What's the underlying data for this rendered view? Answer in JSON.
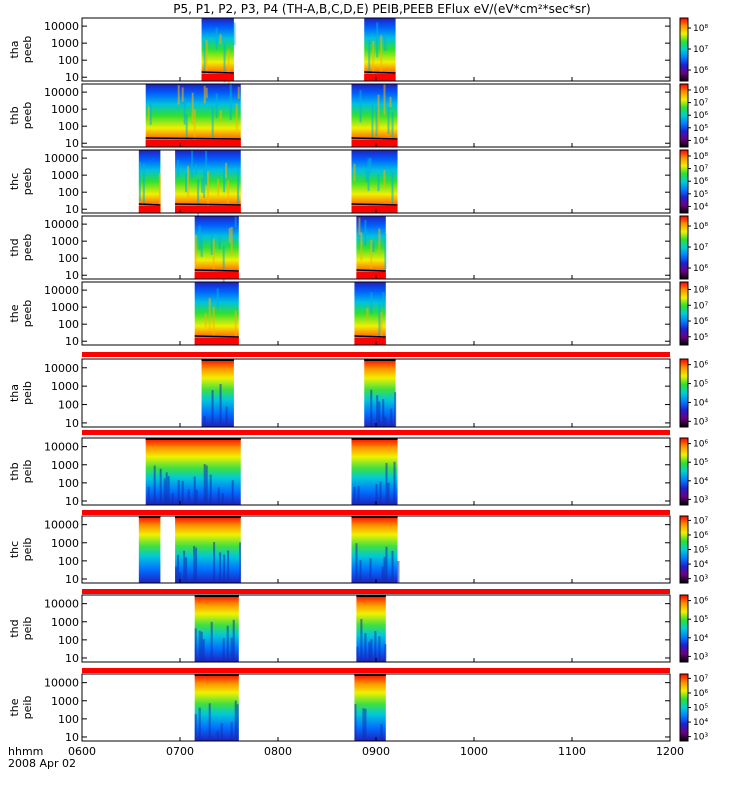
{
  "title": "P5, P1, P2, P3, P4 (TH-A,B,C,D,E) PEIB,PEEB EFlux eV/(eV*cm²*sec*sr)",
  "x_axis": {
    "label_line1": "hhmm",
    "label_line2": "2008 Apr 02",
    "tick_labels": [
      "0600",
      "0700",
      "0800",
      "0900",
      "1000",
      "1100",
      "1200"
    ]
  },
  "colors": {
    "colormap": [
      "#000000",
      "#6a0080",
      "#2020d0",
      "#0080ff",
      "#00d0d0",
      "#30e030",
      "#f0f000",
      "#ff9000",
      "#ff0000"
    ],
    "axes": "#000000",
    "separator": "#ff0000"
  },
  "chart_data": {
    "type": "heatmap",
    "x_range_hours": [
      6.0,
      12.0
    ],
    "y_scale": "log",
    "y_unit": "eV",
    "panels": [
      {
        "probe": "tha",
        "quantity": "peeb",
        "y_ticks": [
          "10",
          "100",
          "1000",
          "10000"
        ],
        "y_range": [
          6,
          30000
        ],
        "cbar_ticks": [
          "10⁶",
          "10⁷",
          "10⁸"
        ],
        "cbar_range": [
          300000,
          300000000
        ],
        "segments": [
          [
            7.22,
            7.55
          ],
          [
            8.88,
            9.2
          ]
        ]
      },
      {
        "probe": "thb",
        "quantity": "peeb",
        "y_ticks": [
          "10",
          "100",
          "1000",
          "10000"
        ],
        "y_range": [
          6,
          30000
        ],
        "cbar_ticks": [
          "10⁴",
          "10⁵",
          "10⁶",
          "10⁷",
          "10⁸"
        ],
        "cbar_range": [
          3000,
          300000000
        ],
        "segments": [
          [
            6.65,
            7.62
          ],
          [
            8.75,
            9.22
          ]
        ]
      },
      {
        "probe": "thc",
        "quantity": "peeb",
        "y_ticks": [
          "10",
          "100",
          "1000",
          "10000"
        ],
        "y_range": [
          6,
          30000
        ],
        "cbar_ticks": [
          "10⁴",
          "10⁵",
          "10⁶",
          "10⁷",
          "10⁸"
        ],
        "cbar_range": [
          3000,
          300000000
        ],
        "segments": [
          [
            6.58,
            6.8
          ],
          [
            6.95,
            7.62
          ],
          [
            8.75,
            9.22
          ]
        ]
      },
      {
        "probe": "thd",
        "quantity": "peeb",
        "y_ticks": [
          "10",
          "100",
          "1000",
          "10000"
        ],
        "y_range": [
          6,
          30000
        ],
        "cbar_ticks": [
          "10⁶",
          "10⁷",
          "10⁸"
        ],
        "cbar_range": [
          300000,
          300000000
        ],
        "segments": [
          [
            7.15,
            7.6
          ],
          [
            8.8,
            9.1
          ]
        ]
      },
      {
        "probe": "the",
        "quantity": "peeb",
        "y_ticks": [
          "10",
          "100",
          "1000",
          "10000"
        ],
        "y_range": [
          6,
          30000
        ],
        "cbar_ticks": [
          "10⁵",
          "10⁶",
          "10⁷",
          "10⁸"
        ],
        "cbar_range": [
          30000,
          300000000
        ],
        "segments": [
          [
            7.15,
            7.6
          ],
          [
            8.78,
            9.1
          ]
        ]
      },
      {
        "probe": "tha",
        "quantity": "peib",
        "y_ticks": [
          "10",
          "100",
          "1000",
          "10000"
        ],
        "y_range": [
          6,
          30000
        ],
        "cbar_ticks": [
          "10³",
          "10⁴",
          "10⁵",
          "10⁶"
        ],
        "cbar_range": [
          500,
          2000000
        ],
        "segments": [
          [
            7.22,
            7.55
          ],
          [
            8.88,
            9.2
          ]
        ]
      },
      {
        "probe": "thb",
        "quantity": "peib",
        "y_ticks": [
          "10",
          "100",
          "1000",
          "10000"
        ],
        "y_range": [
          6,
          30000
        ],
        "cbar_ticks": [
          "10³",
          "10⁴",
          "10⁵",
          "10⁶"
        ],
        "cbar_range": [
          500,
          2000000
        ],
        "segments": [
          [
            6.65,
            7.62
          ],
          [
            8.75,
            9.22
          ]
        ]
      },
      {
        "probe": "thc",
        "quantity": "peib",
        "y_ticks": [
          "10",
          "100",
          "1000",
          "10000"
        ],
        "y_range": [
          6,
          30000
        ],
        "cbar_ticks": [
          "10³",
          "10⁴",
          "10⁵",
          "10⁶",
          "10⁷"
        ],
        "cbar_range": [
          500,
          20000000
        ],
        "segments": [
          [
            6.58,
            6.8
          ],
          [
            6.95,
            7.62
          ],
          [
            8.75,
            9.22
          ]
        ]
      },
      {
        "probe": "thd",
        "quantity": "peib",
        "y_ticks": [
          "10",
          "100",
          "1000",
          "10000"
        ],
        "y_range": [
          6,
          30000
        ],
        "cbar_ticks": [
          "10³",
          "10⁴",
          "10⁵",
          "10⁶"
        ],
        "cbar_range": [
          500,
          2000000
        ],
        "segments": [
          [
            7.15,
            7.6
          ],
          [
            8.8,
            9.1
          ]
        ]
      },
      {
        "probe": "the",
        "quantity": "peib",
        "y_ticks": [
          "10",
          "100",
          "1000",
          "10000"
        ],
        "y_range": [
          6,
          30000
        ],
        "cbar_ticks": [
          "10³",
          "10⁴",
          "10⁵",
          "10⁶",
          "10⁷"
        ],
        "cbar_range": [
          500,
          20000000
        ],
        "segments": [
          [
            7.15,
            7.6
          ],
          [
            8.78,
            9.1
          ]
        ]
      }
    ]
  }
}
